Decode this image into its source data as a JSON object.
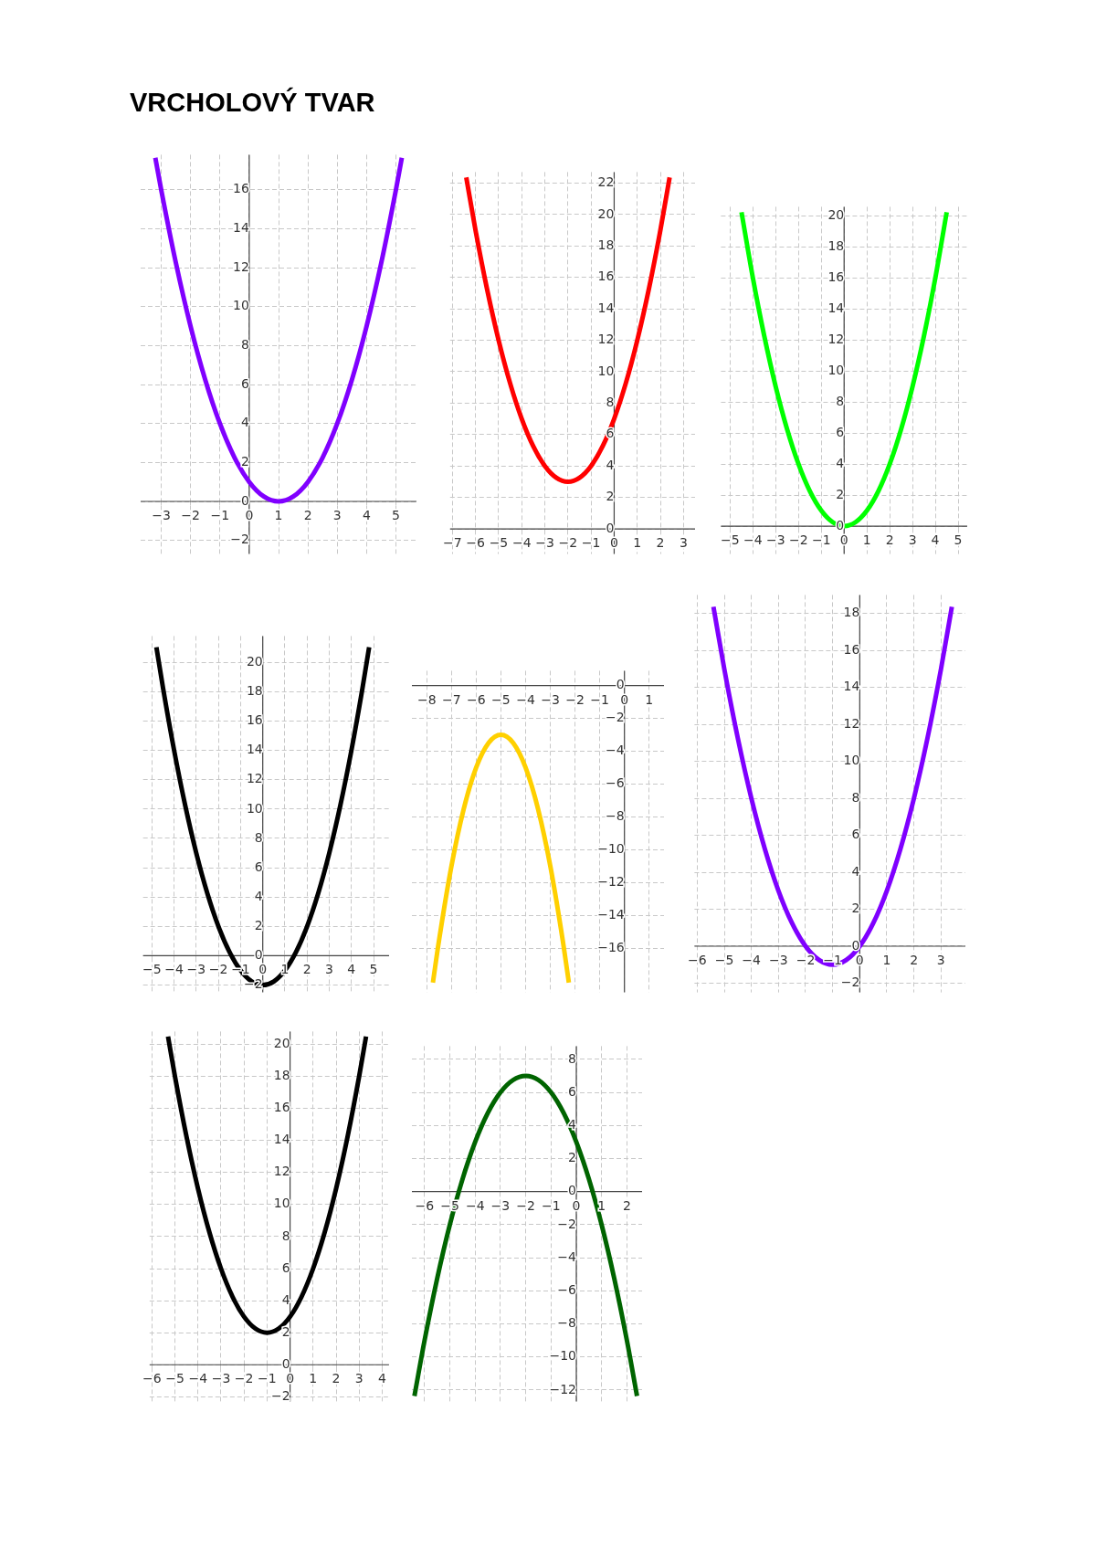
{
  "chart_data": [
    {
      "type": "line",
      "title": "VRCHOLOVÝ TVAR",
      "color": "#8000ff",
      "grid": true,
      "xlim": [
        -3.7,
        5.7
      ],
      "ylim": [
        -2.7,
        17.8
      ],
      "xticks": [
        -3,
        -2,
        -1,
        0,
        1,
        2,
        3,
        4,
        5
      ],
      "yticks": [
        -2,
        0,
        2,
        4,
        6,
        8,
        10,
        12,
        14,
        16
      ],
      "x": [
        -3.2,
        -3,
        -2.5,
        -2,
        -1.5,
        -1,
        -0.5,
        0,
        0.5,
        1,
        1.5,
        2,
        2.5,
        3,
        3.5,
        4,
        4.5,
        5,
        5.2
      ],
      "values": [
        17.64,
        16,
        12.25,
        9,
        6.25,
        4,
        2.25,
        1,
        0.25,
        0,
        0.25,
        1,
        2.25,
        4,
        6.25,
        9,
        12.25,
        16,
        17.64
      ]
    },
    {
      "type": "line",
      "color": "#ff0000",
      "grid": true,
      "xlim": [
        -7.1,
        3.5
      ],
      "ylim": [
        -1.6,
        22.7
      ],
      "xticks": [
        -7,
        -6,
        -5,
        -4,
        -3,
        -2,
        -1,
        0,
        1,
        2,
        3
      ],
      "yticks": [
        0,
        2,
        4,
        6,
        8,
        10,
        12,
        14,
        16,
        18,
        20,
        22
      ],
      "x": [
        -6.4,
        -6,
        -5.5,
        -5,
        -4.5,
        -4,
        -3.5,
        -3,
        -2.5,
        -2,
        -1.5,
        -1,
        -0.5,
        0,
        0.5,
        1,
        1.5,
        2,
        2.4
      ],
      "values": [
        22.36,
        19,
        15.25,
        12,
        9.25,
        7,
        5.25,
        4,
        3.25,
        3,
        3.25,
        4,
        5.25,
        7,
        9.25,
        12,
        15.25,
        19,
        22.36
      ]
    },
    {
      "type": "line",
      "color": "#00ff00",
      "grid": true,
      "xlim": [
        -5.4,
        5.4
      ],
      "ylim": [
        -1.8,
        20.6
      ],
      "xticks": [
        -5,
        -4,
        -3,
        -2,
        -1,
        0,
        1,
        2,
        3,
        4,
        5
      ],
      "yticks": [
        0,
        2,
        4,
        6,
        8,
        10,
        12,
        14,
        16,
        18,
        20
      ],
      "x": [
        -4.5,
        -4,
        -3.5,
        -3,
        -2.5,
        -2,
        -1.5,
        -1,
        -0.5,
        0,
        0.5,
        1,
        1.5,
        2,
        2.5,
        3,
        3.5,
        4,
        4.5
      ],
      "values": [
        20.25,
        16,
        12.25,
        9,
        6.25,
        4,
        2.25,
        1,
        0.25,
        0,
        0.25,
        1,
        2.25,
        4,
        6.25,
        9,
        12.25,
        16,
        20.25
      ]
    },
    {
      "type": "line",
      "color": "#000000",
      "grid": true,
      "xlim": [
        -5.4,
        5.7
      ],
      "ylim": [
        -2.5,
        21.8
      ],
      "xticks": [
        -5,
        -4,
        -3,
        -2,
        -1,
        0,
        1,
        2,
        3,
        4,
        5
      ],
      "yticks": [
        -2,
        0,
        2,
        4,
        6,
        8,
        10,
        12,
        14,
        16,
        18,
        20
      ],
      "x": [
        -4.8,
        -4.5,
        -4,
        -3.5,
        -3,
        -2.5,
        -2,
        -1.5,
        -1,
        -0.5,
        0,
        0.5,
        1,
        1.5,
        2,
        2.5,
        3,
        3.5,
        4,
        4.5,
        4.8
      ],
      "values": [
        21.04,
        18.25,
        14,
        10.25,
        7,
        4.25,
        2,
        0.25,
        -1,
        -1.75,
        -2,
        -1.75,
        -1,
        0.25,
        2,
        4.25,
        7,
        10.25,
        14,
        18.25,
        21.04
      ]
    },
    {
      "type": "line",
      "color": "#ffd000",
      "grid": true,
      "xlim": [
        -8.6,
        1.6
      ],
      "ylim": [
        -18.7,
        0.9
      ],
      "xticks": [
        -8,
        -7,
        -6,
        -5,
        -4,
        -3,
        -2,
        -1,
        0,
        1
      ],
      "yticks": [
        -16,
        -14,
        -12,
        -10,
        -8,
        -6,
        -4,
        -2,
        0
      ],
      "x": [
        -7.75,
        -7.5,
        -7,
        -6.5,
        -6,
        -5.5,
        -5,
        -4.5,
        -4,
        -3.5,
        -3,
        -2.5,
        -2.25
      ],
      "values": [
        -18.1,
        -15.5,
        -11,
        -7.5,
        -5,
        -3.5,
        -3,
        -3.5,
        -5,
        -7.5,
        -11,
        -15.5,
        -18.1
      ]
    },
    {
      "type": "line",
      "color": "#7f00ff",
      "grid": true,
      "xlim": [
        -6.1,
        3.9
      ],
      "ylim": [
        -2.5,
        19
      ],
      "xticks": [
        -6,
        -5,
        -4,
        -3,
        -2,
        -1,
        0,
        1,
        2,
        3
      ],
      "yticks": [
        -2,
        0,
        2,
        4,
        6,
        8,
        10,
        12,
        14,
        16,
        18
      ],
      "x": [
        -5.4,
        -5,
        -4.5,
        -4,
        -3.5,
        -3,
        -2.5,
        -2,
        -1.5,
        -1,
        -0.5,
        0,
        0.5,
        1,
        1.5,
        2,
        2.5,
        3,
        3.4
      ],
      "values": [
        18.36,
        15,
        11.25,
        8,
        5.25,
        3,
        1.25,
        0,
        -0.75,
        -1,
        -0.75,
        0,
        1.25,
        3,
        5.25,
        8,
        11.25,
        15,
        18.36
      ]
    },
    {
      "type": "line",
      "color": "#000000",
      "grid": true,
      "xlim": [
        -6.1,
        4.3
      ],
      "ylim": [
        -2.3,
        20.8
      ],
      "xticks": [
        -6,
        -5,
        -4,
        -3,
        -2,
        -1,
        0,
        1,
        2,
        3,
        4
      ],
      "yticks": [
        -2,
        0,
        2,
        4,
        6,
        8,
        10,
        12,
        14,
        16,
        18,
        20
      ],
      "x": [
        -5.3,
        -5,
        -4.5,
        -4,
        -3.5,
        -3,
        -2.5,
        -2,
        -1.5,
        -1,
        -0.5,
        0,
        0.5,
        1,
        1.5,
        2,
        2.5,
        3,
        3.3
      ],
      "values": [
        20.49,
        18,
        14.25,
        11,
        8.25,
        6,
        4.25,
        3,
        2.25,
        2,
        2.25,
        3,
        4.25,
        6,
        8.25,
        11,
        14.25,
        18,
        20.49
      ]
    },
    {
      "type": "line",
      "color": "#006400",
      "grid": true,
      "xlim": [
        -6.5,
        2.6
      ],
      "ylim": [
        -12.7,
        8.8
      ],
      "xticks": [
        -6,
        -5,
        -4,
        -3,
        -2,
        -1,
        0,
        1,
        2
      ],
      "yticks": [
        -12,
        -10,
        -8,
        -6,
        -4,
        -2,
        0,
        2,
        4,
        6,
        8
      ],
      "x": [
        -6.4,
        -6,
        -5.5,
        -5,
        -4.5,
        -4,
        -3.5,
        -3,
        -2.5,
        -2,
        -1.5,
        -1,
        -0.5,
        0,
        0.5,
        1,
        1.5,
        2,
        2.4
      ],
      "values": [
        -12.36,
        -9,
        -5.25,
        -2,
        0.75,
        3,
        4.75,
        6,
        6.75,
        7,
        6.75,
        6,
        4.75,
        3,
        0.75,
        -2,
        -5.25,
        -9,
        -12.36
      ]
    }
  ]
}
